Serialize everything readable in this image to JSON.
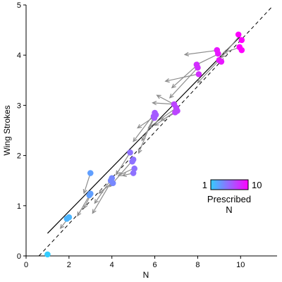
{
  "chart_data": {
    "type": "scatter",
    "xlabel": "N",
    "ylabel": "Wing Strokes",
    "xlim": [
      0,
      11.7
    ],
    "ylim": [
      0,
      5
    ],
    "xticks": [
      0,
      2,
      4,
      6,
      8,
      10
    ],
    "yticks": [
      0,
      1,
      2,
      3,
      4,
      5
    ],
    "colorbar": {
      "min_label": "1",
      "max_label": "10",
      "title_lines": [
        "Prescribed",
        "N"
      ],
      "color_min": "#33ccff",
      "color_max": "#ff00ff"
    },
    "reference_line": {
      "style": "dashed",
      "color": "#000000",
      "x": [
        0.6,
        11.5
      ],
      "y": [
        0.0,
        4.98
      ]
    },
    "fit_line": {
      "style": "solid",
      "color": "#000000",
      "x": [
        1.0,
        10.0
      ],
      "y": [
        0.45,
        4.38
      ]
    },
    "arrow_color": "#8c8c8c",
    "points": [
      {
        "n": 1,
        "x": 1.0,
        "y": 0.03
      },
      {
        "n": 2,
        "x": 2.0,
        "y": 0.77
      },
      {
        "n": 2,
        "x": 1.9,
        "y": 0.74
      },
      {
        "n": 3,
        "x": 3.0,
        "y": 1.65
      },
      {
        "n": 3,
        "x": 3.0,
        "y": 1.24
      },
      {
        "n": 3,
        "x": 2.95,
        "y": 1.21
      },
      {
        "n": 4,
        "x": 4.0,
        "y": 1.55
      },
      {
        "n": 4,
        "x": 4.05,
        "y": 1.45
      },
      {
        "n": 4,
        "x": 3.95,
        "y": 1.5
      },
      {
        "n": 5,
        "x": 4.85,
        "y": 2.06
      },
      {
        "n": 5,
        "x": 5.0,
        "y": 1.92
      },
      {
        "n": 5,
        "x": 4.95,
        "y": 1.88
      },
      {
        "n": 5,
        "x": 5.05,
        "y": 1.74
      },
      {
        "n": 5,
        "x": 5.0,
        "y": 1.65
      },
      {
        "n": 6,
        "x": 6.0,
        "y": 2.85
      },
      {
        "n": 6,
        "x": 5.95,
        "y": 2.78
      },
      {
        "n": 6,
        "x": 6.05,
        "y": 2.81
      },
      {
        "n": 6,
        "x": 5.98,
        "y": 2.75
      },
      {
        "n": 7,
        "x": 6.9,
        "y": 3.02
      },
      {
        "n": 7,
        "x": 7.0,
        "y": 2.95
      },
      {
        "n": 7,
        "x": 7.05,
        "y": 2.89
      },
      {
        "n": 7,
        "x": 6.95,
        "y": 2.86
      },
      {
        "n": 8,
        "x": 7.95,
        "y": 3.81
      },
      {
        "n": 8,
        "x": 8.0,
        "y": 3.75
      },
      {
        "n": 8,
        "x": 8.05,
        "y": 3.62
      },
      {
        "n": 9,
        "x": 8.9,
        "y": 4.1
      },
      {
        "n": 9,
        "x": 8.95,
        "y": 4.03
      },
      {
        "n": 9,
        "x": 9.0,
        "y": 3.9
      },
      {
        "n": 9,
        "x": 9.1,
        "y": 3.87
      },
      {
        "n": 10,
        "x": 9.9,
        "y": 4.41
      },
      {
        "n": 10,
        "x": 10.05,
        "y": 4.3
      },
      {
        "n": 10,
        "x": 9.95,
        "y": 4.16
      },
      {
        "n": 10,
        "x": 10.05,
        "y": 4.1
      }
    ],
    "arrows": [
      {
        "x1": 2.0,
        "y1": 0.77,
        "x2": 1.6,
        "y2": 0.55
      },
      {
        "x1": 3.0,
        "y1": 1.24,
        "x2": 2.4,
        "y2": 0.8
      },
      {
        "x1": 3.0,
        "y1": 1.65,
        "x2": 2.7,
        "y2": 1.25
      },
      {
        "x1": 3.0,
        "y1": 1.21,
        "x2": 2.7,
        "y2": 0.95
      },
      {
        "x1": 4.0,
        "y1": 1.55,
        "x2": 3.2,
        "y2": 1.05
      },
      {
        "x1": 4.0,
        "y1": 1.5,
        "x2": 3.1,
        "y2": 0.85
      },
      {
        "x1": 4.0,
        "y1": 1.45,
        "x2": 3.4,
        "y2": 1.25
      },
      {
        "x1": 5.0,
        "y1": 1.92,
        "x2": 3.9,
        "y2": 1.38
      },
      {
        "x1": 5.0,
        "y1": 1.74,
        "x2": 4.3,
        "y2": 1.6
      },
      {
        "x1": 5.0,
        "y1": 1.65,
        "x2": 4.5,
        "y2": 1.6
      },
      {
        "x1": 4.85,
        "y1": 2.06,
        "x2": 4.2,
        "y2": 1.62
      },
      {
        "x1": 6.0,
        "y1": 2.85,
        "x2": 5.0,
        "y2": 2.28
      },
      {
        "x1": 6.0,
        "y1": 2.78,
        "x2": 5.2,
        "y2": 2.55
      },
      {
        "x1": 6.0,
        "y1": 2.75,
        "x2": 5.4,
        "y2": 2.3
      },
      {
        "x1": 5.98,
        "y1": 2.81,
        "x2": 5.25,
        "y2": 2.05
      },
      {
        "x1": 7.0,
        "y1": 3.02,
        "x2": 5.9,
        "y2": 3.05
      },
      {
        "x1": 7.0,
        "y1": 2.95,
        "x2": 5.7,
        "y2": 2.55
      },
      {
        "x1": 7.0,
        "y1": 2.89,
        "x2": 6.0,
        "y2": 2.6
      },
      {
        "x1": 7.0,
        "y1": 2.86,
        "x2": 6.3,
        "y2": 2.7
      },
      {
        "x1": 6.9,
        "y1": 3.02,
        "x2": 6.1,
        "y2": 3.2
      },
      {
        "x1": 8.0,
        "y1": 3.81,
        "x2": 6.8,
        "y2": 3.35
      },
      {
        "x1": 8.0,
        "y1": 3.75,
        "x2": 6.7,
        "y2": 3.15
      },
      {
        "x1": 8.0,
        "y1": 3.62,
        "x2": 6.5,
        "y2": 3.48
      },
      {
        "x1": 9.0,
        "y1": 4.1,
        "x2": 7.4,
        "y2": 4.01
      },
      {
        "x1": 9.0,
        "y1": 4.03,
        "x2": 7.9,
        "y2": 3.8
      },
      {
        "x1": 9.0,
        "y1": 3.9,
        "x2": 8.0,
        "y2": 3.45
      },
      {
        "x1": 10.0,
        "y1": 4.41,
        "x2": 9.1,
        "y2": 3.95
      },
      {
        "x1": 10.0,
        "y1": 4.16,
        "x2": 9.2,
        "y2": 4.05
      }
    ]
  }
}
